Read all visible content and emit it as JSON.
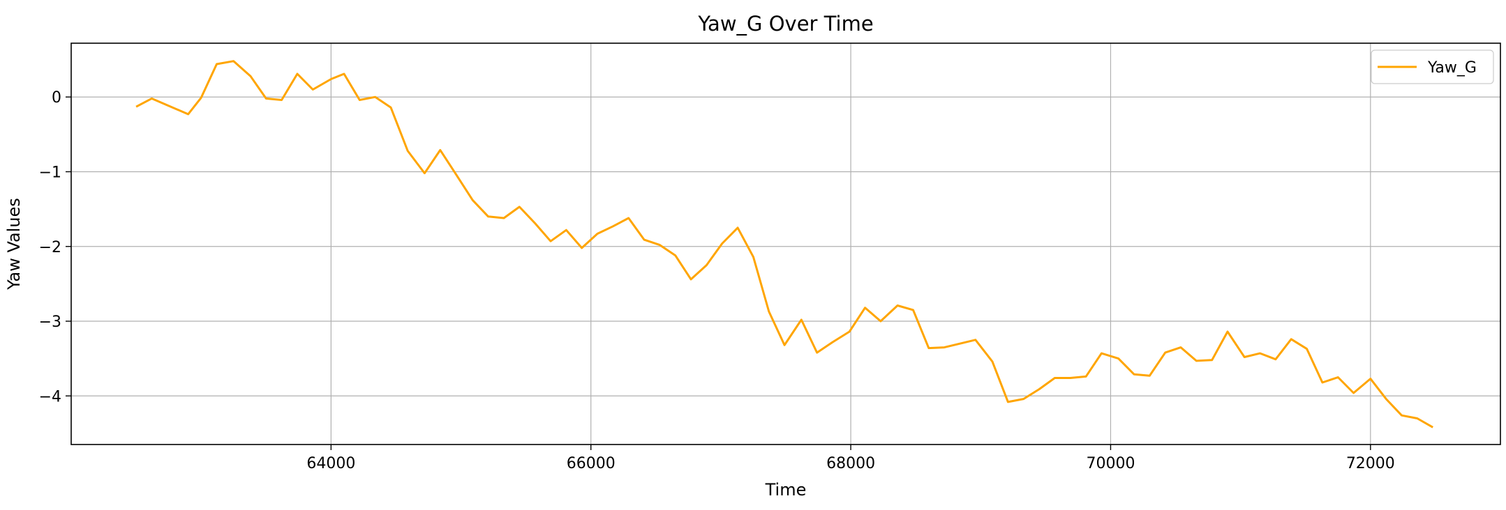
{
  "chart_data": {
    "type": "line",
    "title": "Yaw_G Over Time",
    "xlabel": "Time",
    "ylabel": "Yaw Values",
    "xlim": [
      62000,
      73000
    ],
    "ylim": [
      -4.65,
      0.72
    ],
    "xticks": [
      64000,
      66000,
      68000,
      70000,
      72000
    ],
    "xtick_labels": [
      "64000",
      "66000",
      "68000",
      "70000",
      "72000"
    ],
    "yticks": [
      0,
      -1,
      -2,
      -3,
      -4
    ],
    "ytick_labels": [
      "0",
      "−1",
      "−2",
      "−3",
      "−4"
    ],
    "grid": true,
    "legend": {
      "position": "top-right",
      "entries": [
        "Yaw_G"
      ]
    },
    "series": [
      {
        "name": "Yaw_G",
        "color": "#ffa500",
        "x": [
          62500,
          62620,
          62900,
          63000,
          63120,
          63250,
          63380,
          63500,
          63620,
          63740,
          63860,
          64000,
          64100,
          64220,
          64340,
          64460,
          64590,
          64720,
          64840,
          64960,
          65090,
          65210,
          65330,
          65450,
          65570,
          65690,
          65810,
          65930,
          66050,
          66170,
          66290,
          66410,
          66530,
          66650,
          66770,
          66890,
          67010,
          67130,
          67250,
          67370,
          67490,
          67620,
          67740,
          67860,
          67990,
          68110,
          68230,
          68360,
          68480,
          68600,
          68720,
          68840,
          68960,
          69090,
          69210,
          69330,
          69450,
          69570,
          69690,
          69810,
          69930,
          70060,
          70180,
          70300,
          70420,
          70540,
          70660,
          70780,
          70900,
          71030,
          71150,
          71270,
          71390,
          71510,
          71630,
          71750,
          71870,
          72000,
          72120,
          72240,
          72360,
          72480
        ],
        "y": [
          -0.13,
          -0.02,
          -0.23,
          -0.01,
          0.44,
          0.48,
          0.28,
          -0.02,
          -0.04,
          0.31,
          0.1,
          0.24,
          0.31,
          -0.04,
          0.0,
          -0.14,
          -0.72,
          -1.02,
          -0.71,
          -1.03,
          -1.38,
          -1.6,
          -1.62,
          -1.47,
          -1.69,
          -1.93,
          -1.78,
          -2.02,
          -1.83,
          -1.73,
          -1.62,
          -1.91,
          -1.98,
          -2.12,
          -2.44,
          -2.25,
          -1.96,
          -1.75,
          -2.14,
          -2.87,
          -3.32,
          -2.98,
          -3.42,
          -3.28,
          -3.14,
          -2.82,
          -3.0,
          -2.79,
          -2.85,
          -3.36,
          -3.35,
          -3.3,
          -3.25,
          -3.54,
          -4.08,
          -4.04,
          -3.91,
          -3.76,
          -3.76,
          -3.74,
          -3.43,
          -3.5,
          -3.71,
          -3.73,
          -3.42,
          -3.35,
          -3.53,
          -3.52,
          -3.14,
          -3.48,
          -3.43,
          -3.51,
          -3.24,
          -3.37,
          -3.82,
          -3.75,
          -3.96,
          -3.77,
          -4.04,
          -4.26,
          -4.3,
          -4.42
        ]
      }
    ]
  }
}
